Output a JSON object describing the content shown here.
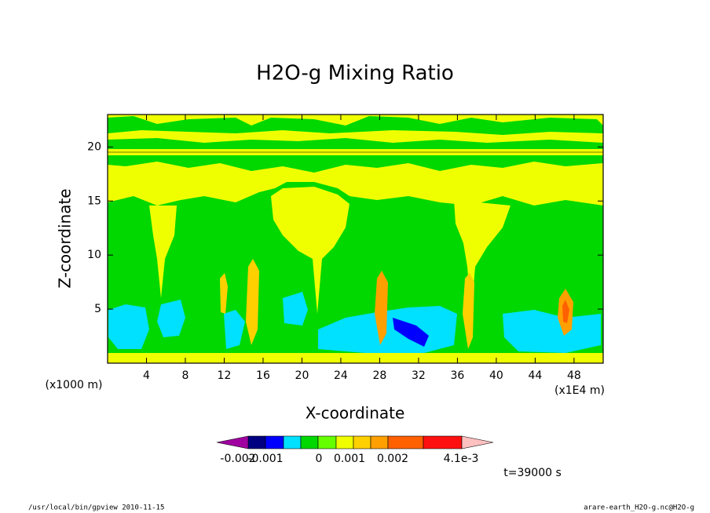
{
  "chart_data": {
    "type": "contour",
    "title": "H2O-g Mixing Ratio",
    "xlabel": "X-coordinate",
    "ylabel": "Z-coordinate",
    "x_unit": "(x1E4 m)",
    "y_unit": "(x1000 m)",
    "xlim": [
      0,
      51
    ],
    "ylim": [
      0,
      23
    ],
    "xticks": [
      4,
      8,
      12,
      16,
      20,
      24,
      28,
      32,
      36,
      40,
      44,
      48
    ],
    "yticks": [
      5,
      10,
      15,
      20
    ],
    "colorbar": {
      "colors": [
        "#000080",
        "#0000ff",
        "#00e0ff",
        "#00d800",
        "#66ff00",
        "#f0ff00",
        "#ffd000",
        "#ffa000",
        "#ff6000",
        "#ff1010",
        "#ff8080"
      ],
      "under_color": "#a000a0",
      "over_color": "#ffc0c0",
      "ticks": [
        {
          "value": -0.002,
          "label": "-0.002"
        },
        {
          "value": -0.001,
          "label": "-0.001"
        },
        {
          "value": 0,
          "label": "0"
        },
        {
          "value": 0.001,
          "label": "0.001"
        },
        {
          "value": 0.002,
          "label": "0.002"
        },
        {
          "value": 0.0041,
          "label": "4.1e-3"
        }
      ]
    },
    "time_label": "t=39000 s",
    "footer_left": "/usr/local/bin/gpview  2010-11-15",
    "footer_right": "arare-earth_H2O-g.nc@H2O-g"
  }
}
